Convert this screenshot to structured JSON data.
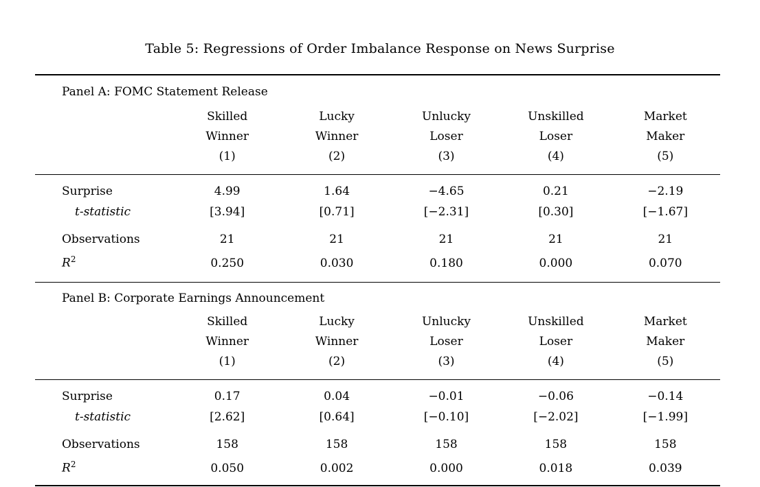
{
  "page": {
    "background": "#ffffff",
    "text_color": "#000000",
    "rule_color": "#000000"
  },
  "caption": "Table 5: Regressions of Order Imbalance Response on News Surprise",
  "table": {
    "columns": [
      {
        "line1": "Skilled",
        "line2": "Winner",
        "number": "(1)"
      },
      {
        "line1": "Lucky",
        "line2": "Winner",
        "number": "(2)"
      },
      {
        "line1": "Unlucky",
        "line2": "Loser",
        "number": "(3)"
      },
      {
        "line1": "Unskilled",
        "line2": "Loser",
        "number": "(4)"
      },
      {
        "line1": "Market",
        "line2": "Maker",
        "number": "(5)"
      }
    ],
    "row_labels": {
      "surprise": "Surprise",
      "tstat": "t-statistic",
      "observations": "Observations",
      "r2_base": "R",
      "r2_sup": "2"
    },
    "panels": [
      {
        "title": "Panel A: FOMC Statement Release",
        "rows": {
          "surprise": [
            "4.99",
            "1.64",
            "−4.65",
            "0.21",
            "−2.19"
          ],
          "tstat": [
            "[3.94]",
            "[0.71]",
            "[−2.31]",
            "[0.30]",
            "[−1.67]"
          ],
          "observations": [
            "21",
            "21",
            "21",
            "21",
            "21"
          ],
          "r2": [
            "0.250",
            "0.030",
            "0.180",
            "0.000",
            "0.070"
          ]
        }
      },
      {
        "title": "Panel B: Corporate Earnings Announcement",
        "rows": {
          "surprise": [
            "0.17",
            "0.04",
            "−0.01",
            "−0.06",
            "−0.14"
          ],
          "tstat": [
            "[2.62]",
            "[0.64]",
            "[−0.10]",
            "[−2.02]",
            "[−1.99]"
          ],
          "observations": [
            "158",
            "158",
            "158",
            "158",
            "158"
          ],
          "r2": [
            "0.050",
            "0.002",
            "0.000",
            "0.018",
            "0.039"
          ]
        }
      }
    ]
  }
}
